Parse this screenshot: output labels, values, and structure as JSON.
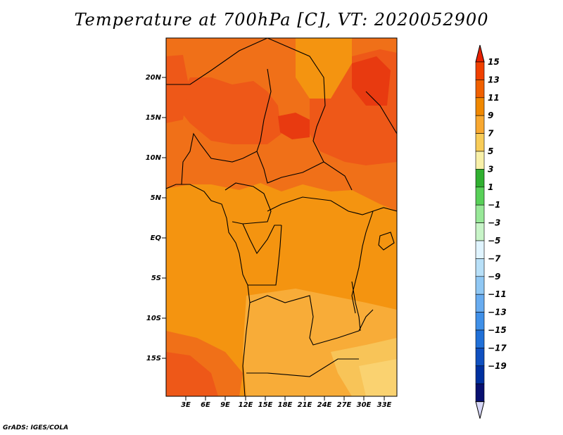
{
  "title": "Temperature at 700hPa [C], VT: 2020052900",
  "credit": "GrADS: IGES/COLA",
  "map": {
    "lat_labels": [
      "20N",
      "15N",
      "10N",
      "5N",
      "EQ",
      "5S",
      "10S",
      "15S"
    ],
    "lon_labels": [
      "3E",
      "6E",
      "9E",
      "12E",
      "15E",
      "18E",
      "21E",
      "24E",
      "27E",
      "30E",
      "33E"
    ],
    "lat_range": [
      -20,
      24.5
    ],
    "lon_range": [
      0,
      35
    ]
  },
  "colorbar": {
    "labels": [
      "15",
      "13",
      "11",
      "9",
      "7",
      "5",
      "3",
      "1",
      "−1",
      "−3",
      "−5",
      "−7",
      "−9",
      "−11",
      "−13",
      "−15",
      "−17",
      "−19"
    ],
    "colors": [
      "#e82000",
      "#f04000",
      "#f06000",
      "#f08800",
      "#f8a830",
      "#f8cc58",
      "#f8f0a8",
      "#30b030",
      "#58d058",
      "#98e898",
      "#c8f4c8",
      "#e0f4ff",
      "#b8e0f8",
      "#90c8f4",
      "#68acf0",
      "#4090e8",
      "#2070d8",
      "#1050c0",
      "#0030a0",
      "#081070",
      "#d8d8f8"
    ]
  }
}
